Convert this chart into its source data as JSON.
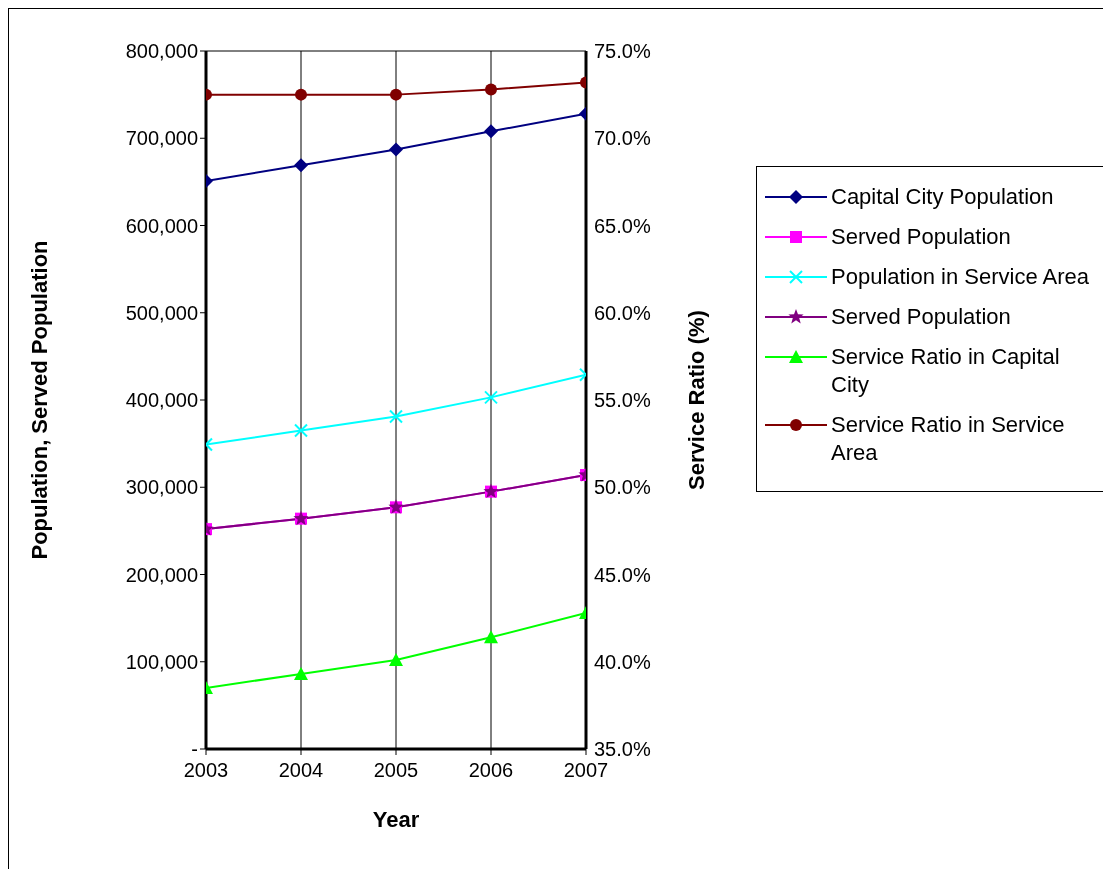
{
  "chart_data": {
    "type": "line",
    "xlabel": "Year",
    "ylabel": "Population, Served Population",
    "y2label": "Service Ratio (%)",
    "categories": [
      "2003",
      "2004",
      "2005",
      "2006",
      "2007"
    ],
    "series": [
      {
        "name": "Capital City Population",
        "color": "#000080",
        "marker": "diamond",
        "values": [
          651000,
          669000,
          687000,
          708000,
          728000
        ]
      },
      {
        "name": "Served Population",
        "color": "#ff00ff",
        "marker": "square",
        "values": [
          252000,
          264000,
          277000,
          295000,
          314000
        ]
      },
      {
        "name": "Population in Service Area",
        "color": "#00ffff",
        "marker": "cross",
        "values": [
          349000,
          365000,
          381000,
          403000,
          429000
        ]
      },
      {
        "name": "Served Population",
        "color": "#800080",
        "marker": "star",
        "values": [
          252000,
          264000,
          277000,
          295000,
          314000
        ]
      },
      {
        "name": "Service Ratio in Capital City",
        "color": "#00ff00",
        "marker": "triangle",
        "axis": "y2",
        "values": [
          38.5,
          39.3,
          40.1,
          41.4,
          42.8
        ]
      },
      {
        "name": "Service Ratio in Service Area",
        "color": "#800000",
        "marker": "circle",
        "axis": "y2",
        "values": [
          72.5,
          72.5,
          72.5,
          72.8,
          73.2
        ]
      }
    ],
    "ylim": [
      0,
      800000
    ],
    "yticks": [
      {
        "value": 0,
        "label": "-"
      },
      {
        "value": 100000,
        "label": "100,000"
      },
      {
        "value": 200000,
        "label": "200,000"
      },
      {
        "value": 300000,
        "label": "300,000"
      },
      {
        "value": 400000,
        "label": "400,000"
      },
      {
        "value": 500000,
        "label": "500,000"
      },
      {
        "value": 600000,
        "label": "600,000"
      },
      {
        "value": 700000,
        "label": "700,000"
      },
      {
        "value": 800000,
        "label": "800,000"
      }
    ],
    "y2lim": [
      35,
      75
    ],
    "y2ticks": [
      {
        "value": 35,
        "label": "35.0%"
      },
      {
        "value": 40,
        "label": "40.0%"
      },
      {
        "value": 45,
        "label": "45.0%"
      },
      {
        "value": 50,
        "label": "50.0%"
      },
      {
        "value": 55,
        "label": "55.0%"
      },
      {
        "value": 60,
        "label": "60.0%"
      },
      {
        "value": 65,
        "label": "65.0%"
      },
      {
        "value": 70,
        "label": "70.0%"
      },
      {
        "value": 75,
        "label": "75.0%"
      }
    ],
    "grid": true,
    "legend": "right",
    "line_style": "solid"
  }
}
